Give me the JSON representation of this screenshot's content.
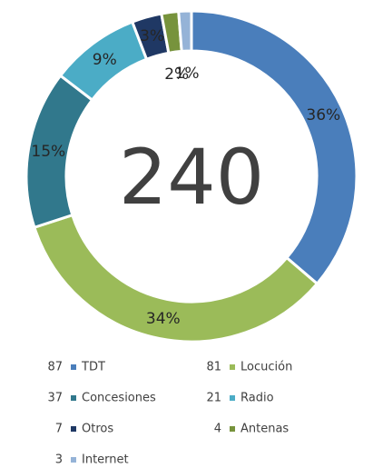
{
  "chart_data": {
    "type": "donut",
    "total": 240,
    "categories": [
      "TDT",
      "Locución",
      "Concesiones",
      "Radio",
      "Otros",
      "Antenas",
      "Internet"
    ],
    "values": [
      87,
      81,
      37,
      21,
      7,
      4,
      3
    ],
    "value_labels": [
      "36%",
      "34%",
      "15%",
      "9%",
      "3%",
      "2%",
      "1%"
    ],
    "colors": [
      "#4a7ebb",
      "#9bbb59",
      "#31788c",
      "#4bacc6",
      "#1f3864",
      "#77933c",
      "#95b3d7"
    ],
    "legend": "bottom"
  }
}
